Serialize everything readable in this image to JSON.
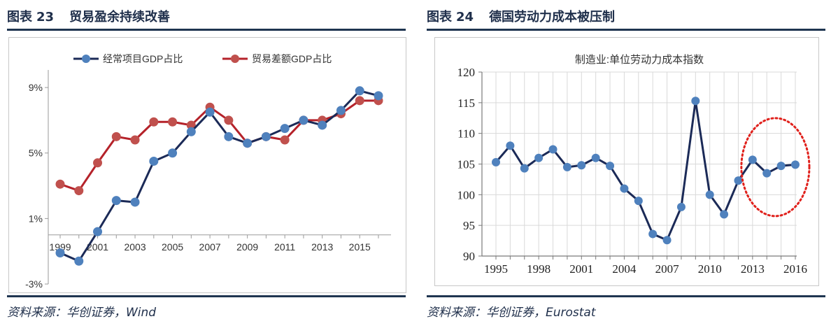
{
  "left": {
    "figure_label": "图表",
    "figure_number": "23",
    "figure_title": "贸易盈余持续改善",
    "source": "资料来源：华创证券，Wind",
    "colors": {
      "series1": "#1b2a57",
      "series2": "#b5222a",
      "marker1": "#4f81bd",
      "marker2": "#c0504d"
    },
    "chart_data": {
      "type": "line",
      "title": "",
      "xlabel": "",
      "ylabel": "",
      "x": [
        1999,
        2000,
        2001,
        2002,
        2003,
        2004,
        2005,
        2006,
        2007,
        2008,
        2009,
        2010,
        2011,
        2012,
        2013,
        2014,
        2015,
        2016
      ],
      "ylim": [
        -3,
        10.5
      ],
      "yticks": [
        -3,
        1,
        5,
        9
      ],
      "ytick_labels": [
        "-3%",
        "1%",
        "5%",
        "9%"
      ],
      "xtick_labels": [
        "1999",
        "2001",
        "2003",
        "2005",
        "2007",
        "2009",
        "2011",
        "2013",
        "2015"
      ],
      "series": [
        {
          "name": "经常项目GDP占比",
          "values": [
            -1.1,
            -1.6,
            0.2,
            2.1,
            2.0,
            4.5,
            5.0,
            6.3,
            7.5,
            6.0,
            5.6,
            6.0,
            6.5,
            7.0,
            6.7,
            7.6,
            8.8,
            8.5
          ]
        },
        {
          "name": "贸易差额GDP占比",
          "values": [
            3.1,
            2.7,
            4.4,
            6.0,
            5.8,
            6.9,
            6.9,
            6.7,
            7.8,
            7.0,
            5.6,
            6.0,
            5.8,
            7.0,
            7.0,
            7.4,
            8.2,
            8.2
          ]
        }
      ]
    }
  },
  "right": {
    "figure_label": "图表",
    "figure_number": "24",
    "figure_title": "德国劳动力成本被压制",
    "source": "资料来源：华创证券，Eurostat",
    "colors": {
      "line": "#1b2a57",
      "marker": "#4f81bd",
      "highlight": "#e0201b"
    },
    "chart_data": {
      "type": "line",
      "title": "制造业:单位劳动力成本指数",
      "xlabel": "",
      "ylabel": "",
      "x": [
        1995,
        1996,
        1997,
        1998,
        1999,
        2000,
        2001,
        2002,
        2003,
        2004,
        2005,
        2006,
        2007,
        2008,
        2009,
        2010,
        2011,
        2012,
        2013,
        2014,
        2015,
        2016
      ],
      "ylim": [
        90,
        120
      ],
      "yticks": [
        90,
        95,
        100,
        105,
        110,
        115,
        120
      ],
      "xtick_labels": [
        "1995",
        "1998",
        "2001",
        "2004",
        "2007",
        "2010",
        "2013",
        "2016"
      ],
      "series": [
        {
          "name": "制造业:单位劳动力成本指数",
          "values": [
            105.3,
            108.0,
            104.3,
            106.0,
            107.4,
            104.5,
            104.8,
            106.0,
            104.7,
            101.0,
            99.0,
            93.6,
            92.6,
            98.0,
            115.3,
            100.0,
            96.8,
            102.3,
            105.7,
            103.5,
            104.7,
            104.9
          ]
        }
      ],
      "annotation": "red dotted ellipse highlighting 2013-2016"
    }
  }
}
